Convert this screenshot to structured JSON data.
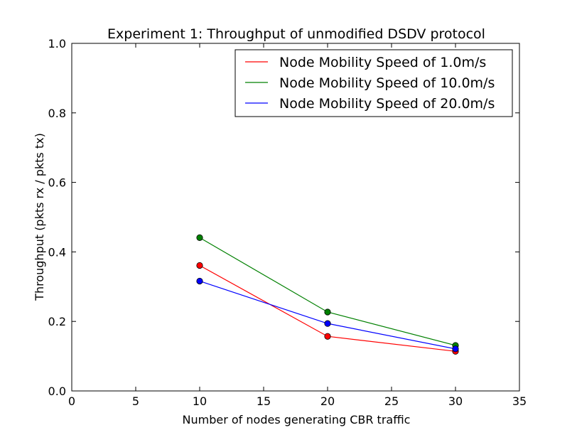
{
  "chart_data": {
    "type": "line",
    "title": "Experiment 1: Throughput of unmodified DSDV protocol",
    "xlabel": "Number of nodes generating CBR traffic",
    "ylabel": "Throughput (pkts rx / pkts tx)",
    "xlim": [
      0,
      35
    ],
    "ylim": [
      0.0,
      1.0
    ],
    "xticks": [
      "0",
      "5",
      "10",
      "15",
      "20",
      "25",
      "30",
      "35"
    ],
    "yticks": [
      "0.0",
      "0.2",
      "0.4",
      "0.6",
      "0.8",
      "1.0"
    ],
    "grid": false,
    "legend_position": "top-right",
    "x": [
      10,
      20,
      30
    ],
    "series": [
      {
        "name": "Node Mobility Speed of 1.0m/s",
        "color": "#ff0000",
        "values": [
          0.361,
          0.157,
          0.114
        ]
      },
      {
        "name": "Node Mobility Speed of 10.0m/s",
        "color": "#008000",
        "values": [
          0.441,
          0.227,
          0.131
        ]
      },
      {
        "name": "Node Mobility Speed of 20.0m/s",
        "color": "#0000ff",
        "values": [
          0.316,
          0.194,
          0.121
        ]
      }
    ]
  }
}
